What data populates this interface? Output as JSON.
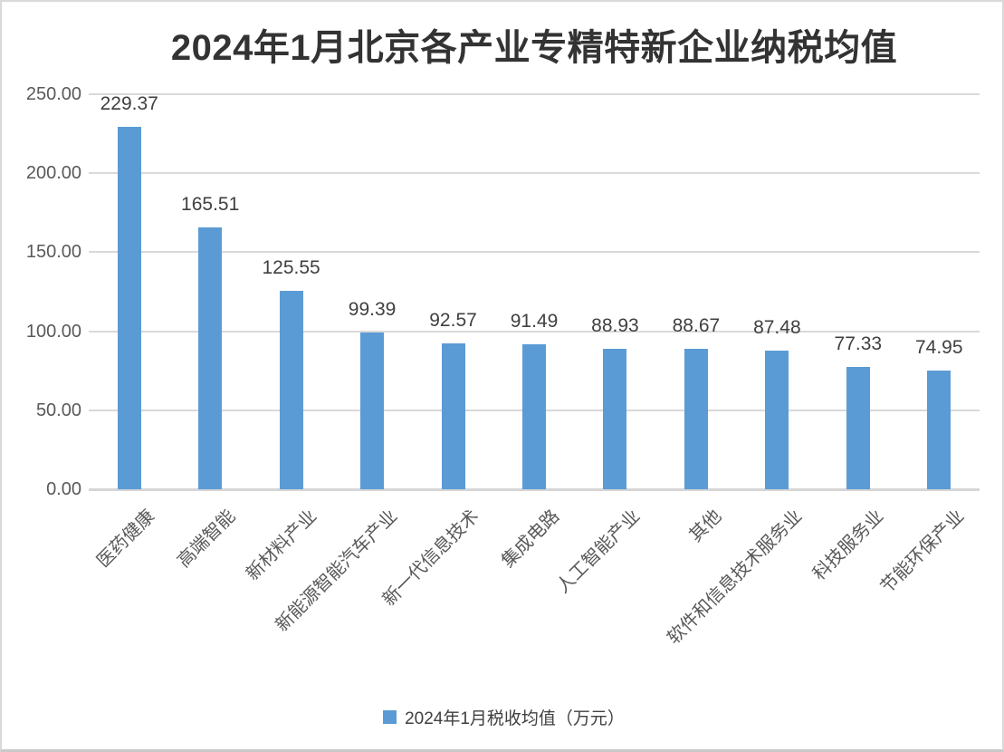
{
  "chart_data": {
    "type": "bar",
    "title": "2024年1月北京各产业专精特新企业纳税均值",
    "categories": [
      "医药健康",
      "高端智能",
      "新材料产业",
      "新能源智能汽车产业",
      "新一代信息技术",
      "集成电路",
      "人工智能产业",
      "其他",
      "软件和信息技术服务业",
      "科技服务业",
      "节能环保产业"
    ],
    "values": [
      229.37,
      165.51,
      125.55,
      99.39,
      92.57,
      91.49,
      88.93,
      88.67,
      87.48,
      77.33,
      74.95
    ],
    "value_labels": [
      "229.37",
      "165.51",
      "125.55",
      "99.39",
      "92.57",
      "91.49",
      "88.93",
      "88.67",
      "87.48",
      "77.33",
      "74.95"
    ],
    "xlabel": "",
    "ylabel": "",
    "ylim": [
      0,
      250
    ],
    "yticks": [
      0,
      50,
      100,
      150,
      200,
      250
    ],
    "ytick_labels": [
      "0.00",
      "50.00",
      "100.00",
      "150.00",
      "200.00",
      "250.00"
    ],
    "grid": true,
    "legend_position": "bottom",
    "legend": {
      "label": "2024年1月税收均值（万元）",
      "swatch_color": "#5B9BD5"
    }
  },
  "colors": {
    "bar": "#5B9BD5",
    "gridline": "#D9D9D9",
    "axis_line": "#D6D6D6",
    "title_text": "#333333",
    "value_label_text": "#404040",
    "tick_text": "#595959",
    "border": "#D9D9D9",
    "background": "#FFFFFF"
  }
}
